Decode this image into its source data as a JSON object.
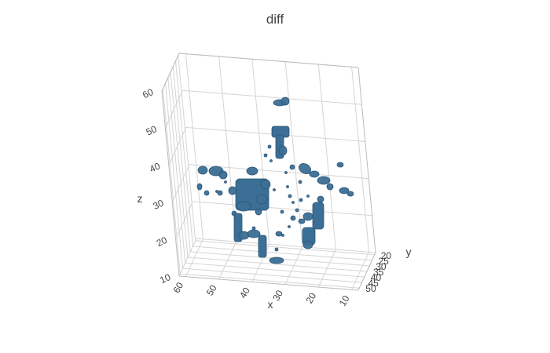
{
  "chart_data": {
    "type": "isosurface-3d",
    "title": "diff",
    "axes": {
      "x": {
        "label": "x",
        "range": [
          8,
          62
        ],
        "ticks": [
          60,
          50,
          40,
          30,
          20,
          10
        ]
      },
      "y": {
        "label": "y",
        "range": [
          18,
          52
        ],
        "ticks": [
          20,
          25,
          30,
          35,
          40,
          45,
          50
        ]
      },
      "z": {
        "label": "z",
        "range": [
          10,
          60
        ],
        "ticks": [
          10,
          20,
          30,
          40,
          50,
          60
        ]
      }
    },
    "grid": true,
    "surface_color": "#3b6f95",
    "surface_edge_color": "#2a5577"
  }
}
